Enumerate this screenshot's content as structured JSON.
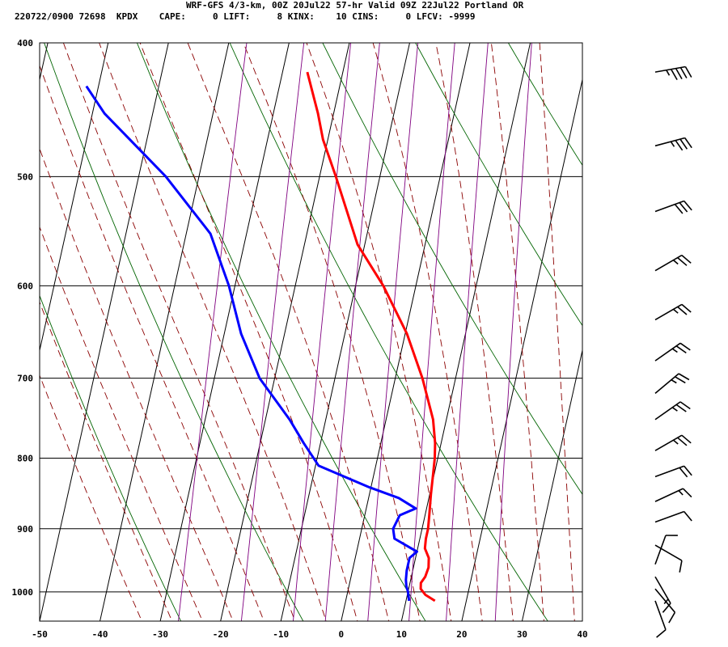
{
  "header": {
    "title": "WRF-GFS 4/3-km, 00Z 20Jul22 57-hr Valid 09Z 22Jul22 Portland OR",
    "stats": "220722/0900 72698  KPDX    CAPE:     0 LIFT:     8 KINX:    10 CINS:     0 LFCV: -9999"
  },
  "chart_data": {
    "type": "line",
    "title": "WRF-GFS 4/3-km, 00Z 20Jul22 57-hr Valid 09Z 22Jul22 Portland OR",
    "xlabel": "",
    "ylabel": "",
    "xlim": [
      -50,
      40
    ],
    "ylim": [
      1050,
      400
    ],
    "y_scale": "log",
    "skew": "skew-T temperature axis",
    "x_ticks": [
      -50,
      -40,
      -30,
      -20,
      -10,
      0,
      10,
      20,
      30,
      40
    ],
    "y_ticks": [
      400,
      500,
      600,
      700,
      800,
      900,
      1000
    ],
    "grid": true,
    "series": [
      {
        "color": "#ff0000",
        "points": [
          [
            1015,
            14.8
          ],
          [
            1005,
            13.0
          ],
          [
            995,
            12.0
          ],
          [
            985,
            11.8
          ],
          [
            975,
            12.3
          ],
          [
            960,
            12.5
          ],
          [
            945,
            12.2
          ],
          [
            930,
            11.2
          ],
          [
            915,
            11.0
          ],
          [
            900,
            11.0
          ],
          [
            880,
            10.7
          ],
          [
            850,
            10.2
          ],
          [
            820,
            9.8
          ],
          [
            800,
            9.5
          ],
          [
            780,
            9.0
          ],
          [
            750,
            7.8
          ],
          [
            700,
            4.5
          ],
          [
            650,
            0.3
          ],
          [
            600,
            -5.4
          ],
          [
            560,
            -11.2
          ],
          [
            500,
            -17.3
          ],
          [
            470,
            -20.8
          ],
          [
            450,
            -22.6
          ],
          [
            420,
            -25.9
          ]
        ]
      },
      {
        "color": "#0000ff",
        "points": [
          [
            1015,
            10.5
          ],
          [
            1000,
            10.0
          ],
          [
            990,
            9.5
          ],
          [
            980,
            9.2
          ],
          [
            965,
            9.0
          ],
          [
            945,
            9.0
          ],
          [
            935,
            10.0
          ],
          [
            915,
            5.8
          ],
          [
            900,
            5.2
          ],
          [
            880,
            5.8
          ],
          [
            870,
            8.2
          ],
          [
            855,
            5.0
          ],
          [
            840,
            -0.2
          ],
          [
            810,
            -9.5
          ],
          [
            780,
            -12.8
          ],
          [
            750,
            -16.0
          ],
          [
            700,
            -22.5
          ],
          [
            650,
            -27.2
          ],
          [
            600,
            -31.0
          ],
          [
            550,
            -36.0
          ],
          [
            500,
            -45.5
          ],
          [
            450,
            -58.0
          ],
          [
            430,
            -62.0
          ]
        ]
      }
    ],
    "background_lines": {
      "isotherm_color": "#000000",
      "dry_adiabat_color": "#006400",
      "moist_adiabat_color": "#8b0000",
      "mixing_ratio_color": "#800080"
    },
    "wind_barbs": {
      "color": "#000000",
      "levels": [
        {
          "p": 420,
          "dir": 260,
          "kt": 45
        },
        {
          "p": 475,
          "dir": 255,
          "kt": 35
        },
        {
          "p": 530,
          "dir": 250,
          "kt": 30
        },
        {
          "p": 585,
          "dir": 240,
          "kt": 25
        },
        {
          "p": 635,
          "dir": 240,
          "kt": 25
        },
        {
          "p": 680,
          "dir": 235,
          "kt": 25
        },
        {
          "p": 718,
          "dir": 230,
          "kt": 25
        },
        {
          "p": 750,
          "dir": 235,
          "kt": 25
        },
        {
          "p": 790,
          "dir": 240,
          "kt": 25
        },
        {
          "p": 825,
          "dir": 250,
          "kt": 20
        },
        {
          "p": 860,
          "dir": 245,
          "kt": 15
        },
        {
          "p": 890,
          "dir": 250,
          "kt": 10
        },
        {
          "p": 925,
          "dir": 300,
          "kt": 10
        },
        {
          "p": 955,
          "dir": 200,
          "kt": 10
        },
        {
          "p": 975,
          "dir": 330,
          "kt": 15
        },
        {
          "p": 995,
          "dir": 320,
          "kt": 10
        },
        {
          "p": 1015,
          "dir": 340,
          "kt": 10
        }
      ]
    }
  }
}
